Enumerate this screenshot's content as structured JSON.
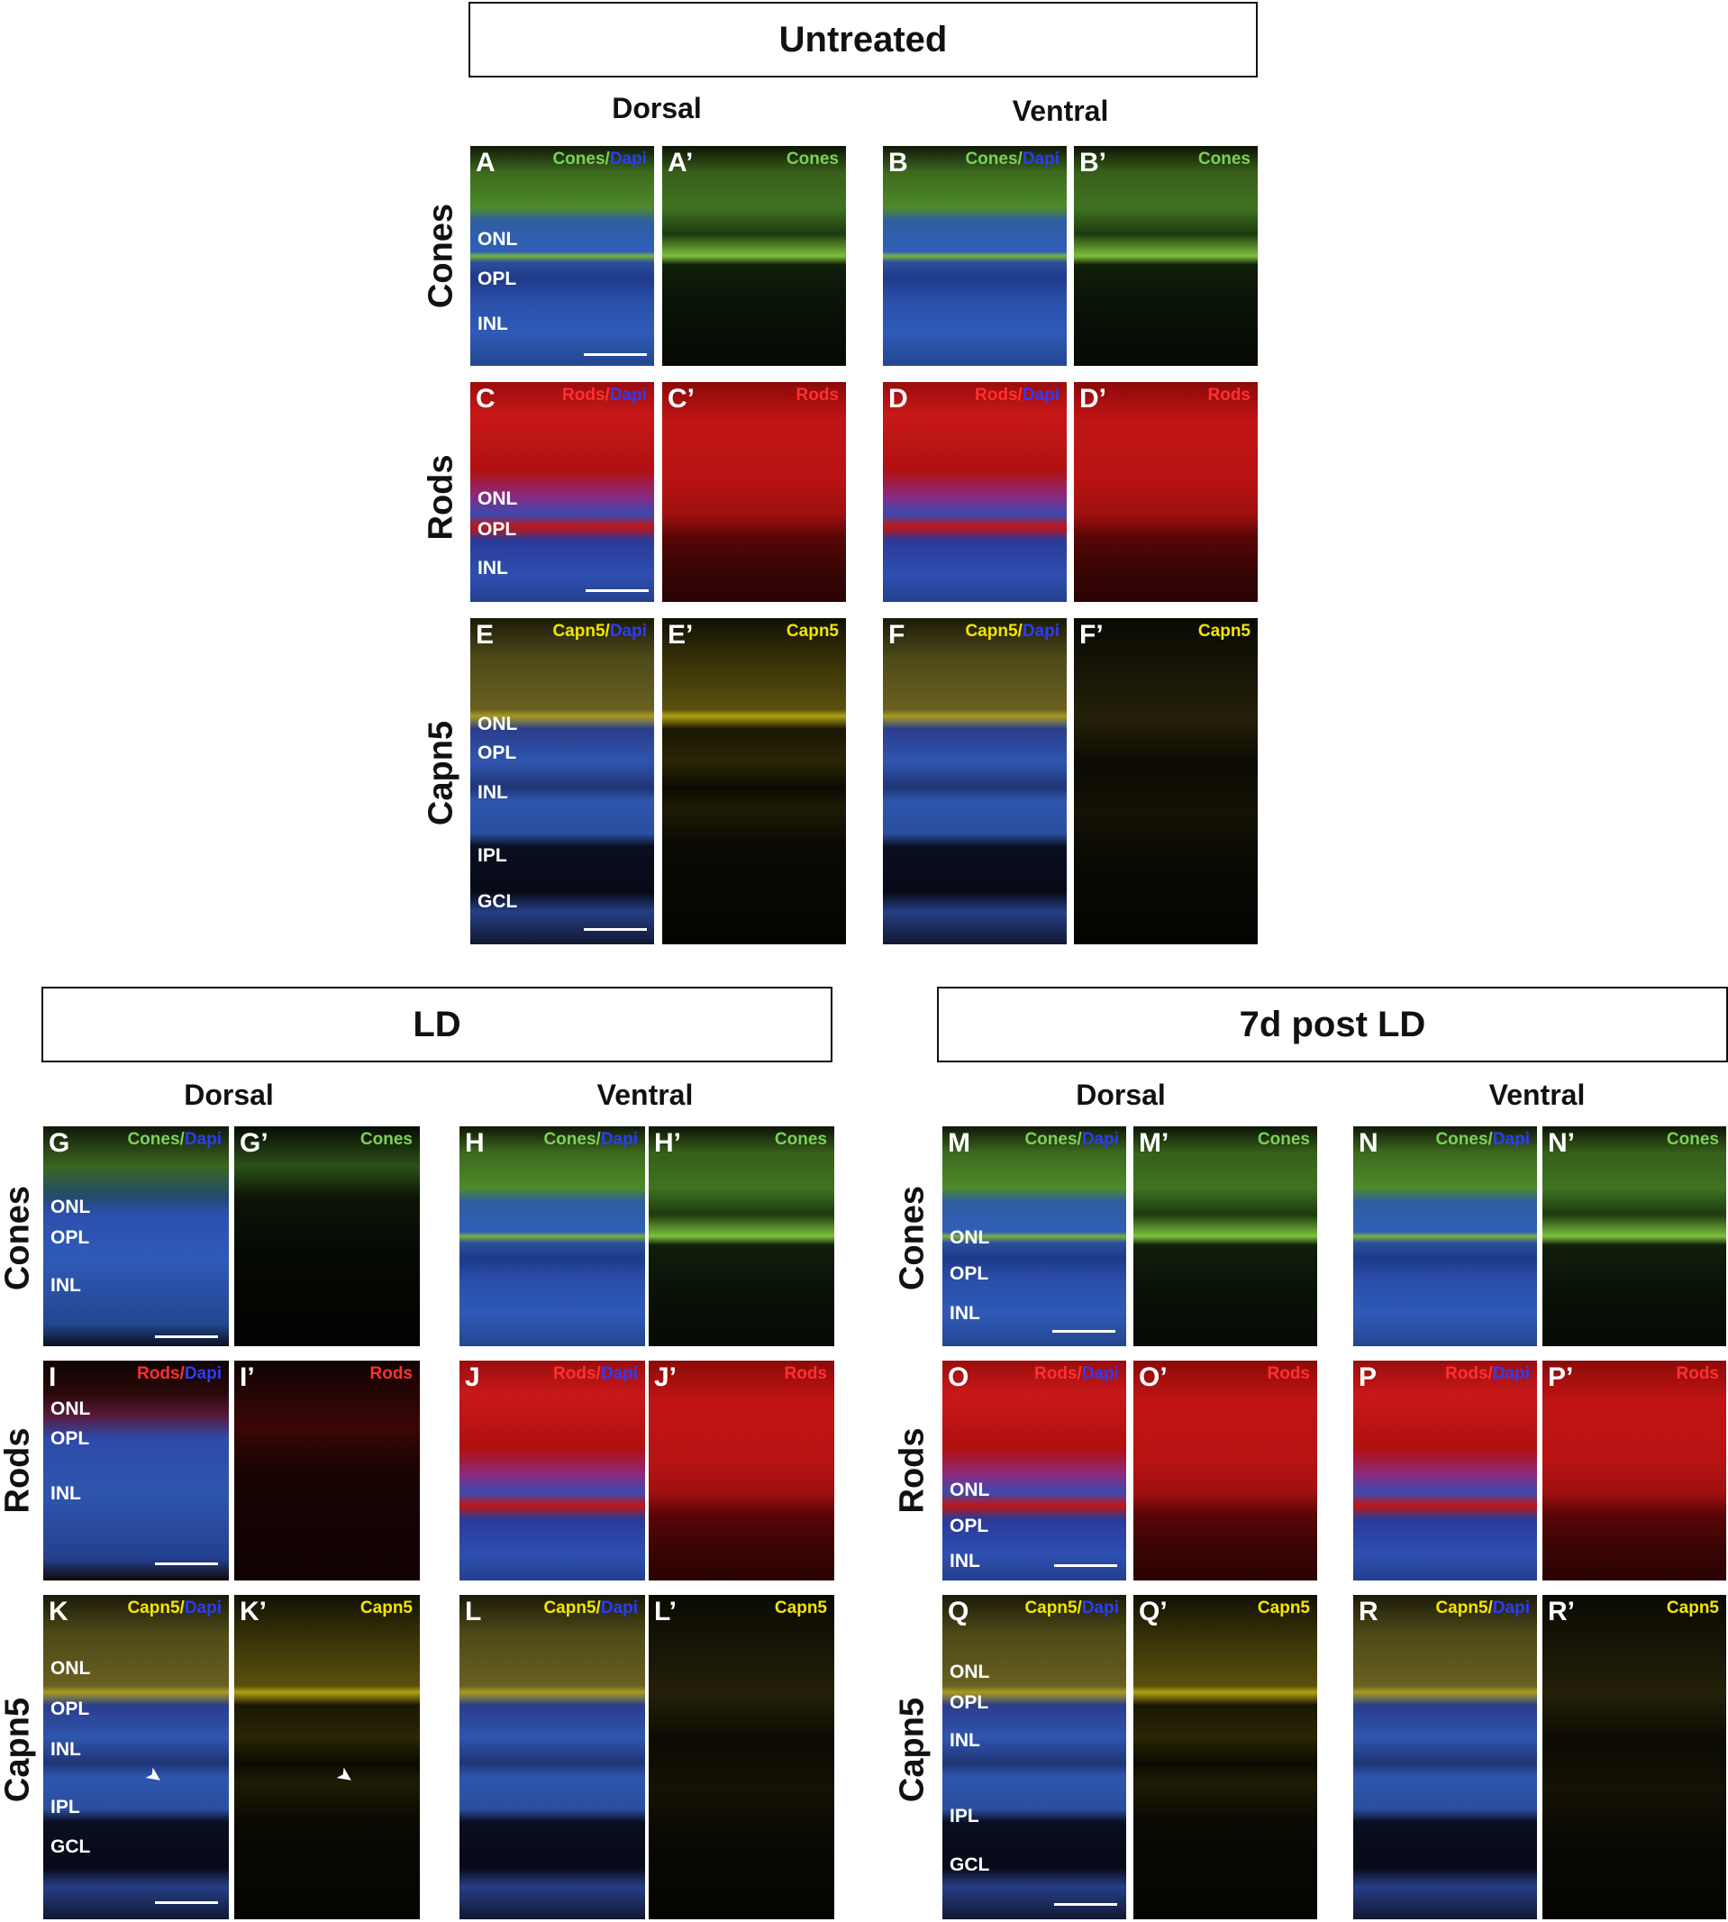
{
  "figure": {
    "sections": {
      "untreated": "Untreated",
      "ld": "LD",
      "post_ld": "7d post LD"
    },
    "columns": {
      "dorsal": "Dorsal",
      "ventral": "Ventral"
    },
    "rows": {
      "cones": "Cones",
      "rods": "Rods",
      "capn5": "Capn5"
    },
    "stains": {
      "cones": "Cones",
      "rods": "Rods",
      "capn5": "Capn5",
      "sep": "/",
      "dapi": "Dapi"
    },
    "layers": {
      "onl": "ONL",
      "opl": "OPL",
      "inl": "INL",
      "ipl": "IPL",
      "gcl": "GCL"
    },
    "panel_labels": {
      "A": "A",
      "A2": "A’",
      "B": "B",
      "B2": "B’",
      "C": "C",
      "C2": "C’",
      "D": "D",
      "D2": "D’",
      "E": "E",
      "E2": "E’",
      "F": "F",
      "F2": "F’",
      "G": "G",
      "G2": "G’",
      "H": "H",
      "H2": "H’",
      "I": "I",
      "I2": "I’",
      "J": "J",
      "J2": "J’",
      "K": "K",
      "K2": "K’",
      "L": "L",
      "L2": "L’",
      "M": "M",
      "M2": "M’",
      "N": "N",
      "N2": "N’",
      "O": "O",
      "O2": "O’",
      "P": "P",
      "P2": "P’",
      "Q": "Q",
      "Q2": "Q’",
      "R": "R",
      "R2": "R’"
    },
    "colors": {
      "cones": "#7dd05a",
      "dapi": "#2a3cff",
      "rods": "#ff3030",
      "capn5": "#f3e600"
    }
  }
}
